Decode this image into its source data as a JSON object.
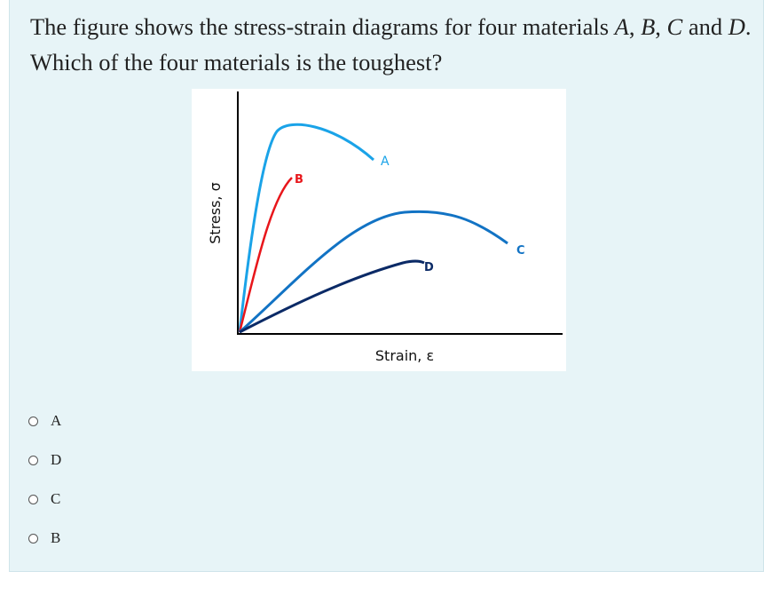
{
  "question": {
    "part1": "The figure shows the stress-strain diagrams for four materials ",
    "mA": "A",
    "sep1": ", ",
    "mB": "B",
    "sep2": ", ",
    "mC": "C",
    "part2": " and ",
    "mD": "D",
    "part3": ". Which of the four materials is the toughest?"
  },
  "chart_data": {
    "type": "line",
    "xlabel": "Strain, ε",
    "ylabel": "Stress, σ",
    "grid": false,
    "series": [
      {
        "name": "A",
        "color": "#1aa3e8"
      },
      {
        "name": "B",
        "color": "#e8161b"
      },
      {
        "name": "C",
        "color": "#1273c4"
      },
      {
        "name": "D",
        "color": "#0b2a66"
      }
    ]
  },
  "options": [
    {
      "label": "A"
    },
    {
      "label": "D"
    },
    {
      "label": "C"
    },
    {
      "label": "B"
    }
  ]
}
